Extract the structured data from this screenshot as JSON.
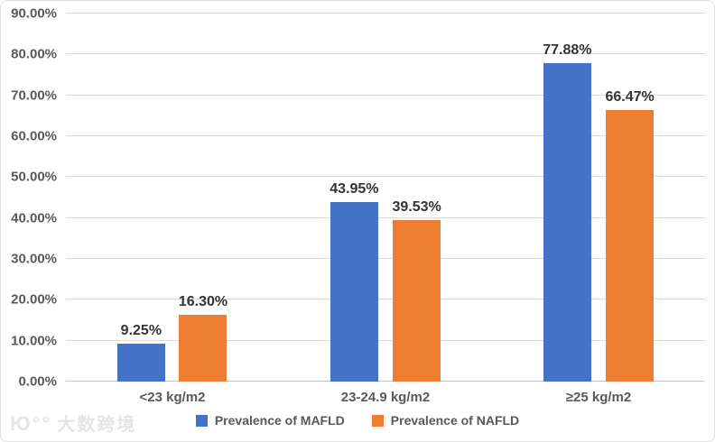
{
  "chart_data": {
    "type": "bar",
    "title": "",
    "xlabel": "",
    "ylabel": "",
    "categories": [
      "<23 kg/m2",
      "23-24.9 kg/m2",
      "≥25 kg/m2"
    ],
    "series": [
      {
        "id": "mafld",
        "name": "Prevalence of MAFLD",
        "color": "#4472C4",
        "values": [
          9.25,
          43.95,
          77.88
        ],
        "labels": [
          "9.25%",
          "43.95%",
          "77.88%"
        ]
      },
      {
        "id": "nafld",
        "name": "Prevalence of NAFLD",
        "color": "#ED7D31",
        "values": [
          16.3,
          39.53,
          66.47
        ],
        "labels": [
          "16.30%",
          "39.53%",
          "66.47%"
        ]
      }
    ],
    "yticks": [
      "0.00%",
      "10.00%",
      "20.00%",
      "30.00%",
      "40.00%",
      "50.00%",
      "60.00%",
      "70.00%",
      "80.00%",
      "90.00%"
    ],
    "ylim": [
      0,
      90
    ],
    "grid": true,
    "legend_position": "bottom"
  },
  "watermark": {
    "logo": "Ю°°",
    "text": "大数跨境"
  }
}
